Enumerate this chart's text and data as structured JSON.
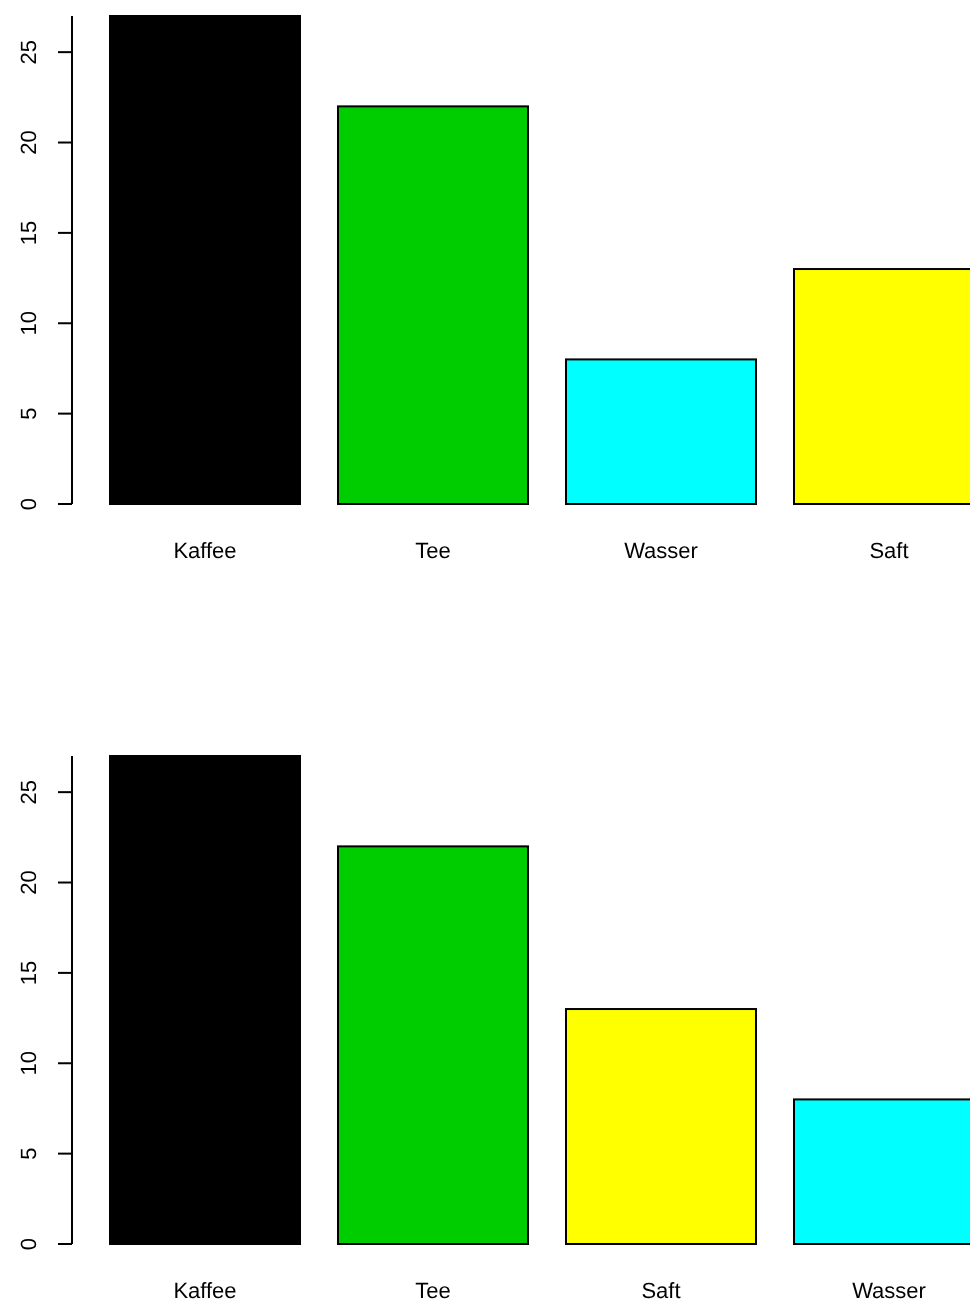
{
  "chart_data": [
    {
      "type": "bar",
      "categories": [
        "Kaffee",
        "Tee",
        "Wasser",
        "Saft"
      ],
      "values": [
        27,
        22,
        8,
        13
      ],
      "colors": [
        "#000000",
        "#00cd00",
        "#00ffff",
        "#ffff00"
      ],
      "ylim": [
        0,
        27
      ],
      "yticks": [
        0,
        5,
        10,
        15,
        20,
        25
      ]
    },
    {
      "type": "bar",
      "categories": [
        "Kaffee",
        "Tee",
        "Saft",
        "Wasser"
      ],
      "values": [
        27,
        22,
        13,
        8
      ],
      "colors": [
        "#000000",
        "#00cd00",
        "#ffff00",
        "#00ffff"
      ],
      "ylim": [
        0,
        27
      ],
      "yticks": [
        0,
        5,
        10,
        15,
        20,
        25
      ]
    }
  ]
}
